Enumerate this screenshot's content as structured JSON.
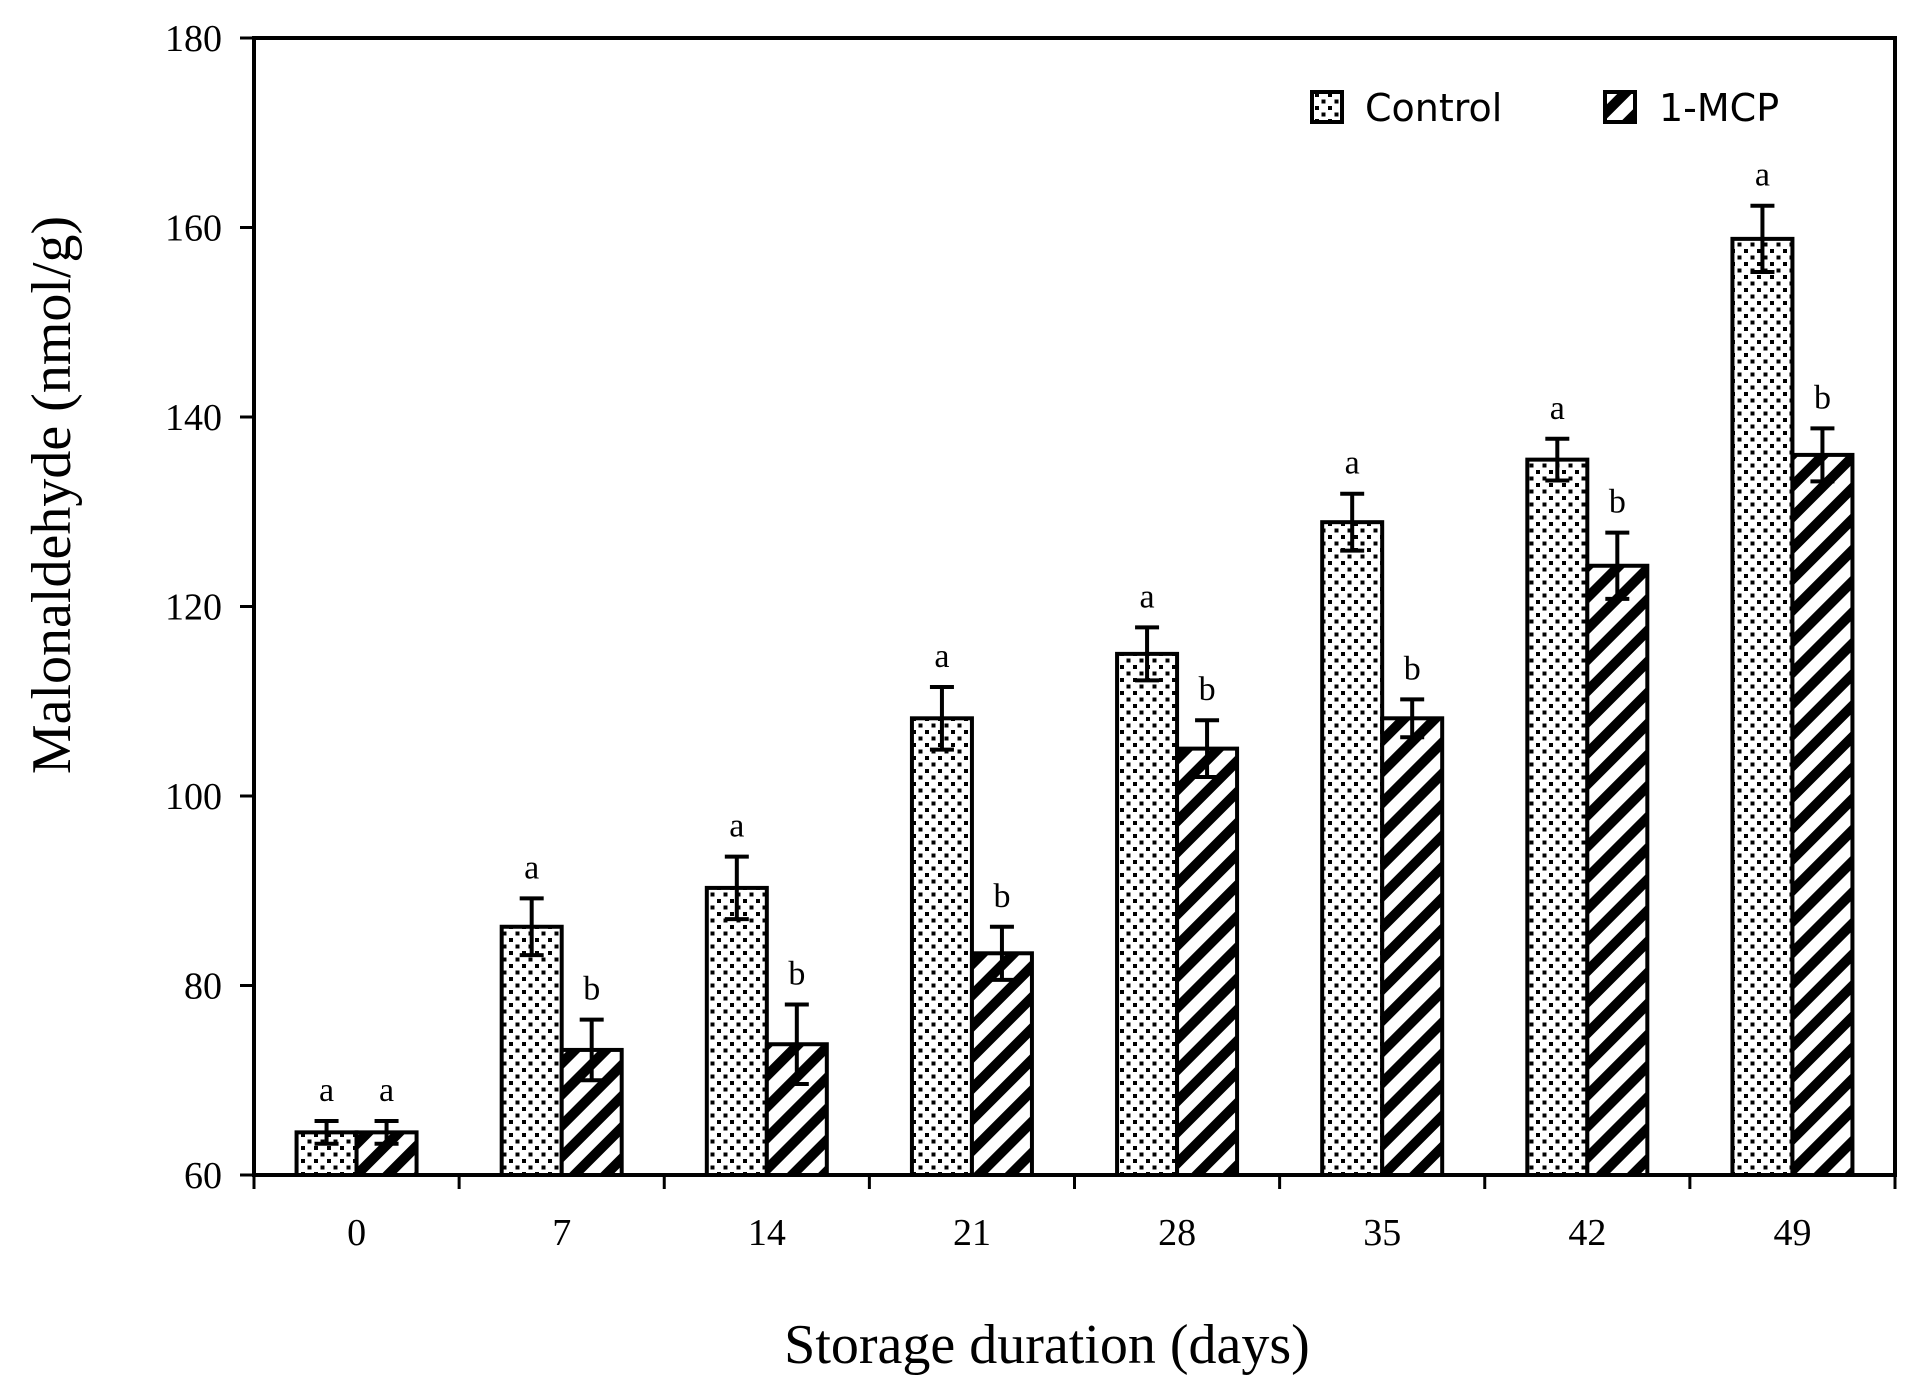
{
  "chart_data": {
    "type": "bar",
    "title": "",
    "xlabel": "Storage duration (days)",
    "ylabel": "Malonaldehyde (nmol/g)",
    "ylim": [
      60,
      180
    ],
    "yticks": [
      60,
      80,
      100,
      120,
      140,
      160,
      180
    ],
    "grid": false,
    "legend_position": "top-right",
    "categories": [
      "0",
      "7",
      "14",
      "21",
      "28",
      "35",
      "42",
      "49"
    ],
    "series": [
      {
        "name": "Control",
        "pattern": "dots",
        "values": [
          64.5,
          86.2,
          90.3,
          108.2,
          115.0,
          128.9,
          135.5,
          158.8
        ],
        "errors": [
          1.2,
          3.0,
          3.3,
          3.3,
          2.8,
          3.0,
          2.2,
          3.5
        ],
        "labels": [
          "a",
          "a",
          "a",
          "a",
          "a",
          "a",
          "a",
          "a"
        ]
      },
      {
        "name": "1-MCP",
        "pattern": "diagonal-stripes",
        "values": [
          64.5,
          73.2,
          73.8,
          83.4,
          105.0,
          108.2,
          124.3,
          136.0
        ],
        "errors": [
          1.2,
          3.2,
          4.2,
          2.8,
          3.0,
          2.0,
          3.5,
          2.8
        ],
        "labels": [
          "a",
          "b",
          "b",
          "b",
          "b",
          "b",
          "b",
          "b"
        ]
      }
    ]
  },
  "colors": {
    "axis": "#000000",
    "bar_fill": "#ffffff",
    "pattern": "#000000"
  }
}
